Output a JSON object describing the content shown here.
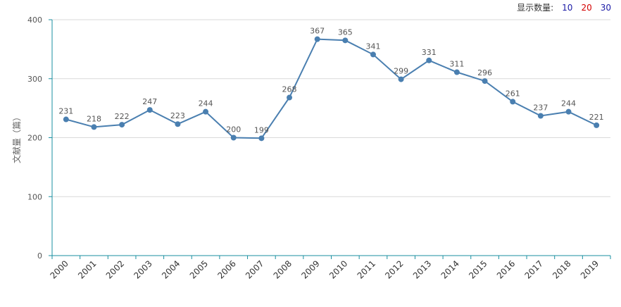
{
  "controls": {
    "label": "显示数量:",
    "options": [
      {
        "text": "10",
        "color": "#1a1aa6"
      },
      {
        "text": "20",
        "color": "#d40000"
      },
      {
        "text": "30",
        "color": "#1a1aa6"
      }
    ]
  },
  "colors": {
    "line": "#4a7fb0",
    "axis": "#1a8fa0",
    "grid": "#d9d9d9",
    "label": "#555555"
  },
  "chart_data": {
    "type": "line",
    "title": "",
    "xlabel": "",
    "ylabel": "文献量（篇）",
    "ylim": [
      0,
      400
    ],
    "yticks": [
      0,
      100,
      200,
      300,
      400
    ],
    "grid": true,
    "categories": [
      "2000",
      "2001",
      "2002",
      "2003",
      "2004",
      "2005",
      "2006",
      "2007",
      "2008",
      "2009",
      "2010",
      "2011",
      "2012",
      "2013",
      "2014",
      "2015",
      "2016",
      "2017",
      "2018",
      "2019"
    ],
    "series": [
      {
        "values": [
          231,
          218,
          222,
          247,
          223,
          244,
          200,
          199,
          268,
          367,
          365,
          341,
          299,
          331,
          311,
          296,
          261,
          237,
          244,
          221
        ]
      }
    ]
  }
}
